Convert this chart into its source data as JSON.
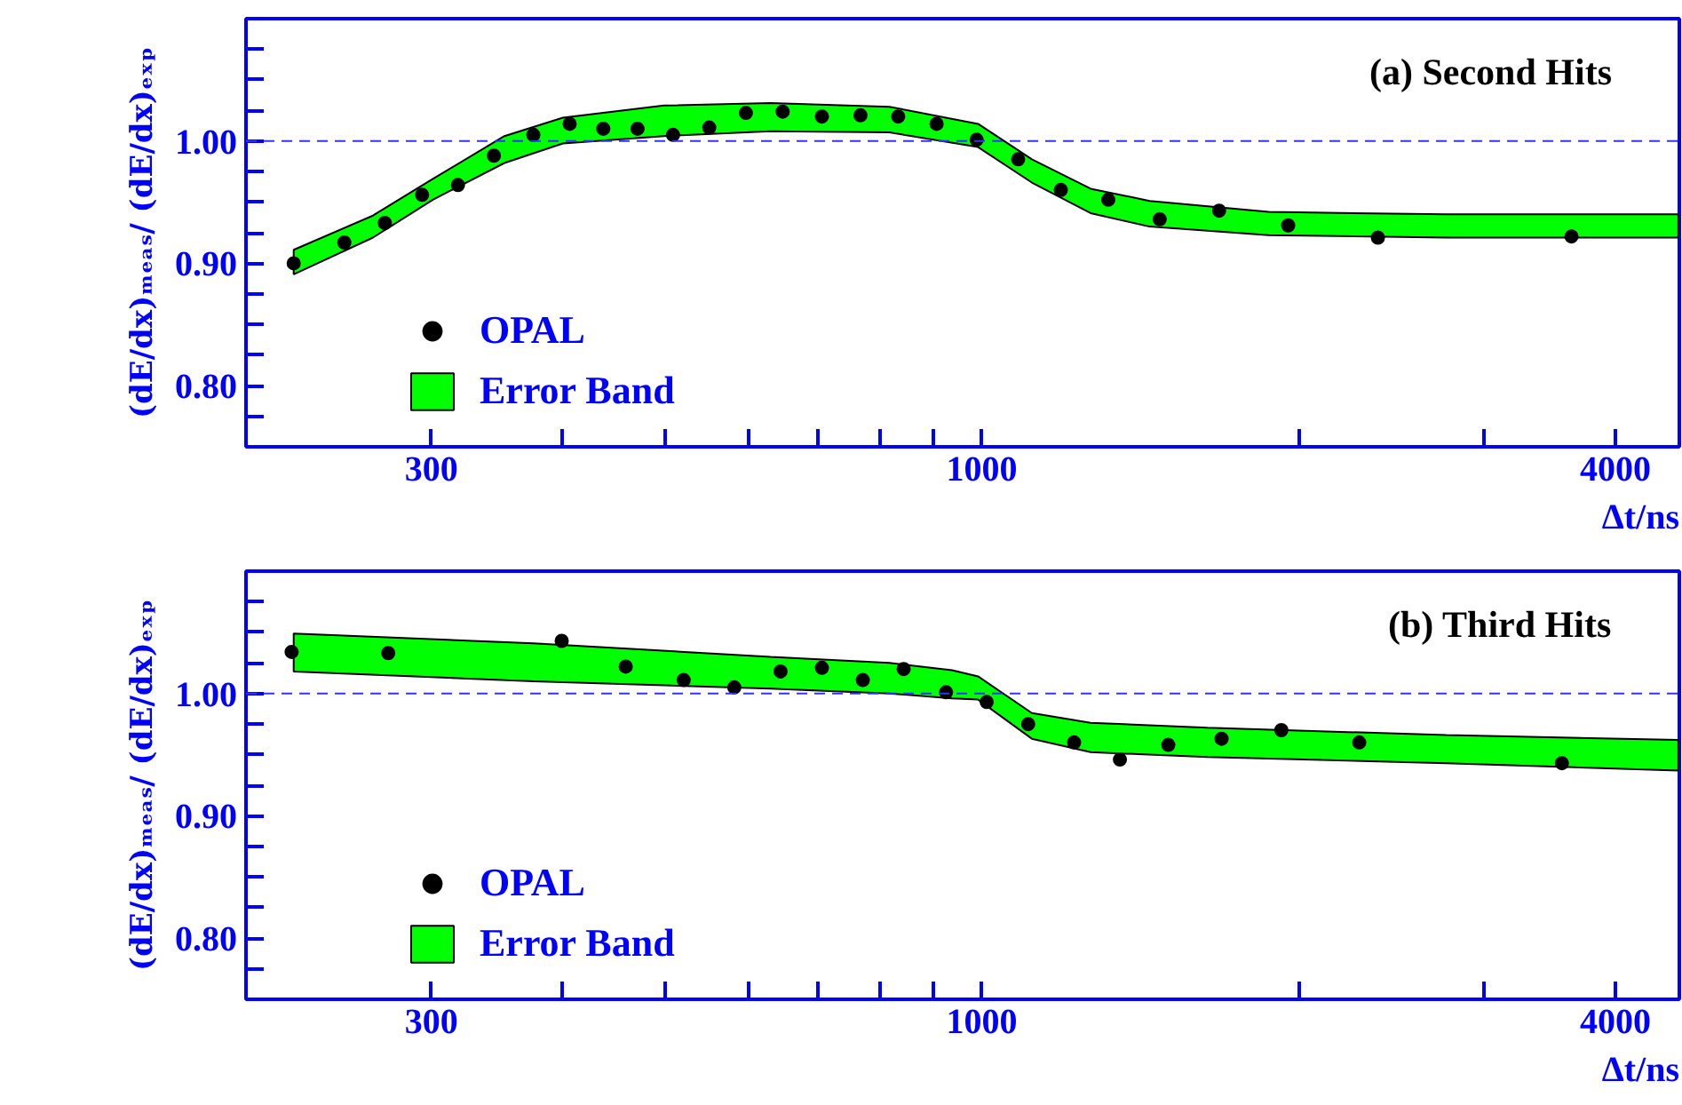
{
  "chart_data": [
    {
      "type": "scatter",
      "title": "(a) Second Hits",
      "xlabel": "Δt/ns",
      "ylabel": "(dE/dx)ₘₑₐₛ/ (dE/dx)ₑₓₚ",
      "log": "x",
      "legend": "bottom left",
      "grid": false,
      "xlim": [
        200,
        4600
      ],
      "ylim": [
        0.75,
        1.1
      ],
      "xticks": [
        300,
        {
          "value": 400,
          "label": null
        },
        {
          "value": 500,
          "label": null
        },
        {
          "value": 600,
          "label": null
        },
        {
          "value": 700,
          "label": null
        },
        {
          "value": 800,
          "label": null
        },
        {
          "value": 900,
          "label": null
        },
        1000,
        {
          "value": 2000,
          "label": null
        },
        {
          "value": 3000,
          "label": null
        },
        4000
      ],
      "yticks": [
        {
          "value": 0.775,
          "label": null
        },
        {
          "value": 0.8,
          "label": "0.80"
        },
        {
          "value": 0.825,
          "label": null
        },
        {
          "value": 0.85,
          "label": null
        },
        {
          "value": 0.875,
          "label": null
        },
        {
          "value": 0.9,
          "label": "0.90"
        },
        {
          "value": 0.925,
          "label": null
        },
        {
          "value": 0.95,
          "label": null
        },
        {
          "value": 0.975,
          "label": null
        },
        {
          "value": 1.0,
          "label": "1.00"
        },
        {
          "value": 1.025,
          "label": null
        },
        {
          "value": 1.05,
          "label": null
        },
        {
          "value": 1.075,
          "label": null
        }
      ],
      "ref_lines": [
        {
          "axis": "y",
          "value": 1.0,
          "color": "#3333ff",
          "line_style": "dashed"
        }
      ],
      "series": [
        {
          "name": "Error Band",
          "type": "line",
          "color": "#00ff00",
          "x": [
            222,
            264,
            301,
            352,
            400,
            499,
            630,
            817,
            992,
            1116,
            1269,
            1444,
            1873,
            2763,
            4590
          ],
          "values": [
            null,
            null,
            null,
            null,
            null,
            null,
            null,
            null,
            null,
            null,
            null,
            null,
            null,
            null,
            null
          ],
          "upper": [
            0.911,
            0.939,
            0.969,
            1.004,
            1.019,
            1.029,
            1.031,
            1.028,
            1.014,
            0.985,
            0.961,
            0.951,
            0.942,
            0.94,
            0.94
          ],
          "lower": [
            0.891,
            0.921,
            0.952,
            0.982,
            0.998,
            1.004,
            1.008,
            1.007,
            0.995,
            0.966,
            0.941,
            0.93,
            0.923,
            0.921,
            0.921
          ]
        },
        {
          "name": "OPAL",
          "color": "#000000",
          "marker": "circle",
          "x": [
            222,
            248,
            271,
            294,
            318,
            344,
            375,
            406,
            437,
            471,
            509,
            551,
            597,
            647,
            705,
            767,
            833,
            906,
            989,
            1083,
            1189,
            1319,
            1476,
            1681,
            1955,
            2379,
            3633
          ],
          "values": [
            0.9,
            0.917,
            0.933,
            0.956,
            0.964,
            0.988,
            1.005,
            1.014,
            1.01,
            1.01,
            1.005,
            1.011,
            1.023,
            1.024,
            1.02,
            1.021,
            1.02,
            1.014,
            1.001,
            0.985,
            0.96,
            0.952,
            0.936,
            0.943,
            0.931,
            0.921,
            0.922
          ]
        }
      ]
    },
    {
      "type": "scatter",
      "title": "(b) Third Hits",
      "xlabel": "Δt/ns",
      "ylabel": "(dE/dx)ₘₑₐₛ/ (dE/dx)ₑₓₚ",
      "log": "x",
      "legend": "bottom left",
      "grid": false,
      "xlim": [
        200,
        4600
      ],
      "ylim": [
        0.75,
        1.1
      ],
      "xticks": [
        300,
        {
          "value": 400,
          "label": null
        },
        {
          "value": 500,
          "label": null
        },
        {
          "value": 600,
          "label": null
        },
        {
          "value": 700,
          "label": null
        },
        {
          "value": 800,
          "label": null
        },
        {
          "value": 900,
          "label": null
        },
        1000,
        {
          "value": 2000,
          "label": null
        },
        {
          "value": 3000,
          "label": null
        },
        4000
      ],
      "yticks": [
        {
          "value": 0.775,
          "label": null
        },
        {
          "value": 0.8,
          "label": "0.80"
        },
        {
          "value": 0.825,
          "label": null
        },
        {
          "value": 0.85,
          "label": null
        },
        {
          "value": 0.875,
          "label": null
        },
        {
          "value": 0.9,
          "label": "0.90"
        },
        {
          "value": 0.925,
          "label": null
        },
        {
          "value": 0.95,
          "label": null
        },
        {
          "value": 0.975,
          "label": null
        },
        {
          "value": 1.0,
          "label": "1.00"
        },
        {
          "value": 1.025,
          "label": null
        },
        {
          "value": 1.05,
          "label": null
        },
        {
          "value": 1.075,
          "label": null
        }
      ],
      "ref_lines": [
        {
          "axis": "y",
          "value": 1.0,
          "color": "#3333ff",
          "line_style": "dashed"
        }
      ],
      "series": [
        {
          "name": "Error Band",
          "type": "line",
          "color": "#00ff00",
          "x": [
            222,
            375,
            630,
            817,
            937,
            992,
            1116,
            1269,
            1638,
            2763,
            4590
          ],
          "values": [
            null,
            null,
            null,
            null,
            null,
            null,
            null,
            null,
            null,
            null,
            null
          ],
          "upper": [
            1.049,
            1.041,
            1.03,
            1.025,
            1.019,
            1.014,
            0.984,
            0.976,
            0.972,
            0.966,
            0.962
          ],
          "lower": [
            1.018,
            1.01,
            1.004,
            1.0,
            0.996,
            0.995,
            0.963,
            0.952,
            0.948,
            0.943,
            0.937
          ]
        },
        {
          "name": "OPAL",
          "color": "#000000",
          "marker": "circle",
          "x": [
            221,
            273,
            399,
            459,
            521,
            582,
            644,
            705,
            771,
            843,
            925,
            1011,
            1107,
            1224,
            1353,
            1504,
            1690,
            1926,
            2284,
            3558
          ],
          "values": [
            1.034,
            1.033,
            1.043,
            1.022,
            1.011,
            1.005,
            1.018,
            1.021,
            1.011,
            1.02,
            1.001,
            0.993,
            0.975,
            0.96,
            0.946,
            0.958,
            0.963,
            0.97,
            0.96,
            0.943
          ]
        }
      ]
    }
  ]
}
